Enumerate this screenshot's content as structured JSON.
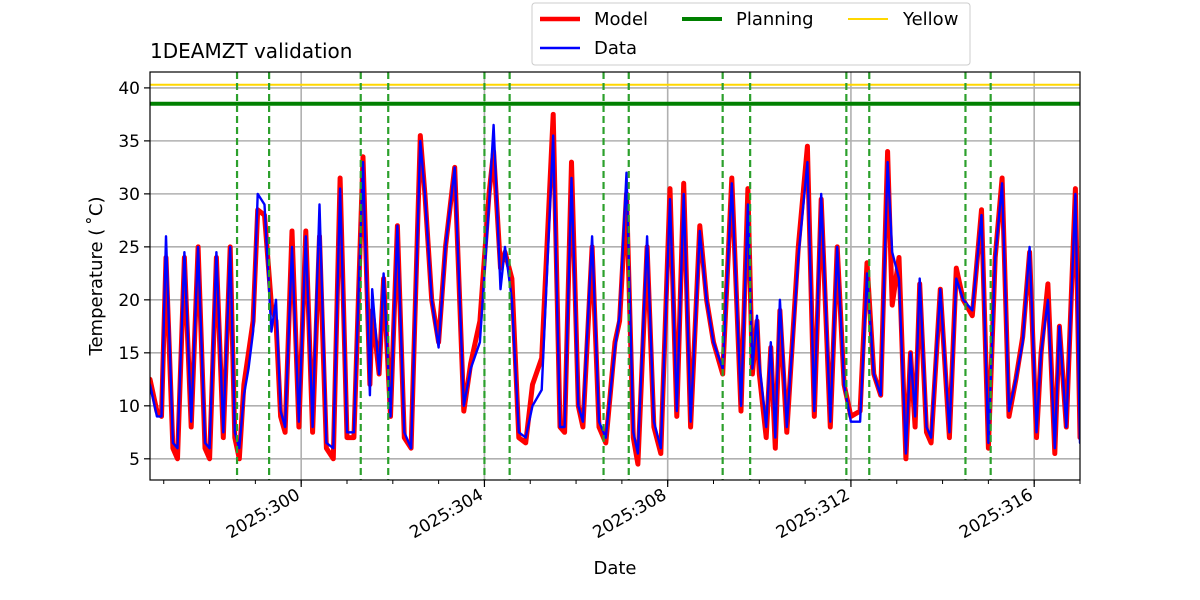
{
  "chart_data": {
    "type": "line",
    "title": "1DEAMZT validation",
    "xlabel": "Date",
    "ylabel": "Temperature ($^\\circ$C)",
    "ylabel_display": "Temperature ( ˚C)",
    "xlim": [
      296.7,
      317.0
    ],
    "ylim": [
      3.0,
      41.5
    ],
    "yticks": [
      5,
      10,
      15,
      20,
      25,
      30,
      35,
      40
    ],
    "xticks": [
      {
        "value": 300,
        "label": "2025:300"
      },
      {
        "value": 304,
        "label": "2025:304"
      },
      {
        "value": 308,
        "label": "2025:308"
      },
      {
        "value": 312,
        "label": "2025:312"
      },
      {
        "value": 316,
        "label": "2025:316"
      }
    ],
    "grid": true,
    "colors": {
      "model": "#ff0000",
      "data": "#0000ff",
      "planning": "#008000",
      "yellow": "#ffd700",
      "vline": "#2ca02c",
      "grid": "#b0b0b0"
    },
    "limits": [
      {
        "name": "Planning",
        "value": 38.5
      },
      {
        "name": "Yellow",
        "value": 40.3
      }
    ],
    "vertical_lines": [
      298.6,
      299.3,
      301.3,
      301.9,
      304.0,
      304.55,
      306.6,
      307.15,
      309.2,
      309.8,
      311.9,
      312.4,
      314.5,
      315.05
    ],
    "legend": {
      "location": "upper center outside",
      "entries": [
        {
          "label": "Model",
          "key": "model"
        },
        {
          "label": "Data",
          "key": "data"
        },
        {
          "label": "Planning",
          "key": "planning"
        },
        {
          "label": "Yellow",
          "key": "yellow"
        }
      ]
    },
    "series": [
      {
        "name": "Model",
        "color": "#ff0000",
        "points": [
          [
            296.7,
            12.5
          ],
          [
            296.85,
            9.5
          ],
          [
            296.95,
            9.0
          ],
          [
            297.05,
            24.0
          ],
          [
            297.2,
            6.0
          ],
          [
            297.3,
            5.0
          ],
          [
            297.45,
            24.0
          ],
          [
            297.6,
            8.0
          ],
          [
            297.75,
            25.0
          ],
          [
            297.9,
            6.0
          ],
          [
            298.0,
            5.0
          ],
          [
            298.15,
            24.0
          ],
          [
            298.3,
            7.0
          ],
          [
            298.45,
            25.0
          ],
          [
            298.55,
            7.0
          ],
          [
            298.65,
            5.0
          ],
          [
            298.75,
            12.0
          ],
          [
            298.85,
            15.0
          ],
          [
            298.95,
            18.0
          ],
          [
            299.05,
            28.5
          ],
          [
            299.2,
            28.0
          ],
          [
            299.35,
            19.5
          ],
          [
            299.45,
            18.0
          ],
          [
            299.55,
            9.0
          ],
          [
            299.65,
            7.5
          ],
          [
            299.8,
            26.5
          ],
          [
            299.95,
            8.0
          ],
          [
            300.1,
            26.5
          ],
          [
            300.25,
            7.5
          ],
          [
            300.4,
            26.0
          ],
          [
            300.55,
            6.0
          ],
          [
            300.7,
            5.0
          ],
          [
            300.85,
            31.5
          ],
          [
            301.0,
            7.0
          ],
          [
            301.15,
            7.0
          ],
          [
            301.35,
            33.5
          ],
          [
            301.5,
            12.0
          ],
          [
            301.55,
            19.0
          ],
          [
            301.7,
            13.0
          ],
          [
            301.8,
            22.0
          ],
          [
            301.95,
            9.0
          ],
          [
            302.1,
            27.0
          ],
          [
            302.25,
            7.0
          ],
          [
            302.4,
            6.0
          ],
          [
            302.6,
            35.5
          ],
          [
            302.7,
            30.0
          ],
          [
            302.85,
            20.0
          ],
          [
            303.0,
            16.0
          ],
          [
            303.15,
            25.0
          ],
          [
            303.35,
            32.5
          ],
          [
            303.55,
            9.5
          ],
          [
            303.7,
            14.0
          ],
          [
            303.9,
            18.0
          ],
          [
            304.1,
            30.0
          ],
          [
            304.2,
            34.0
          ],
          [
            304.35,
            23.0
          ],
          [
            304.45,
            24.5
          ],
          [
            304.6,
            22.0
          ],
          [
            304.75,
            7.0
          ],
          [
            304.9,
            6.5
          ],
          [
            305.05,
            12.0
          ],
          [
            305.25,
            14.5
          ],
          [
            305.5,
            37.5
          ],
          [
            305.65,
            8.0
          ],
          [
            305.75,
            7.5
          ],
          [
            305.9,
            33.0
          ],
          [
            306.05,
            10.0
          ],
          [
            306.15,
            8.0
          ],
          [
            306.35,
            25.0
          ],
          [
            306.5,
            8.0
          ],
          [
            306.65,
            6.5
          ],
          [
            306.85,
            16.0
          ],
          [
            306.95,
            18.0
          ],
          [
            307.1,
            30.0
          ],
          [
            307.25,
            7.0
          ],
          [
            307.35,
            4.5
          ],
          [
            307.55,
            25.0
          ],
          [
            307.7,
            8.0
          ],
          [
            307.85,
            5.5
          ],
          [
            308.05,
            30.5
          ],
          [
            308.2,
            9.0
          ],
          [
            308.35,
            31.0
          ],
          [
            308.5,
            8.0
          ],
          [
            308.7,
            27.0
          ],
          [
            308.85,
            20.0
          ],
          [
            309.0,
            16.0
          ],
          [
            309.2,
            13.0
          ],
          [
            309.4,
            31.5
          ],
          [
            309.6,
            9.5
          ],
          [
            309.75,
            30.5
          ],
          [
            309.85,
            13.0
          ],
          [
            309.95,
            18.0
          ],
          [
            310.0,
            13.0
          ],
          [
            310.15,
            7.0
          ],
          [
            310.25,
            15.5
          ],
          [
            310.35,
            6.0
          ],
          [
            310.45,
            19.0
          ],
          [
            310.6,
            7.5
          ],
          [
            310.85,
            25.0
          ],
          [
            311.05,
            34.5
          ],
          [
            311.2,
            9.0
          ],
          [
            311.35,
            29.5
          ],
          [
            311.55,
            8.0
          ],
          [
            311.7,
            25.0
          ],
          [
            311.85,
            12.0
          ],
          [
            312.0,
            9.0
          ],
          [
            312.2,
            9.5
          ],
          [
            312.35,
            23.5
          ],
          [
            312.5,
            13.0
          ],
          [
            312.65,
            11.0
          ],
          [
            312.8,
            34.0
          ],
          [
            312.9,
            19.5
          ],
          [
            313.05,
            24.0
          ],
          [
            313.2,
            5.0
          ],
          [
            313.3,
            15.0
          ],
          [
            313.4,
            8.0
          ],
          [
            313.5,
            21.5
          ],
          [
            313.65,
            7.5
          ],
          [
            313.75,
            6.5
          ],
          [
            313.95,
            21.0
          ],
          [
            314.15,
            7.0
          ],
          [
            314.3,
            23.0
          ],
          [
            314.45,
            20.0
          ],
          [
            314.65,
            18.5
          ],
          [
            314.85,
            28.5
          ],
          [
            315.0,
            6.0
          ],
          [
            315.15,
            24.0
          ],
          [
            315.3,
            31.5
          ],
          [
            315.45,
            9.0
          ],
          [
            315.6,
            12.5
          ],
          [
            315.75,
            16.5
          ],
          [
            315.9,
            24.5
          ],
          [
            316.05,
            7.0
          ],
          [
            316.15,
            15.0
          ],
          [
            316.3,
            21.5
          ],
          [
            316.45,
            5.5
          ],
          [
            316.55,
            17.5
          ],
          [
            316.7,
            8.0
          ],
          [
            316.9,
            30.5
          ],
          [
            317.0,
            7.0
          ]
        ]
      },
      {
        "name": "Data",
        "color": "#0000ff",
        "points": [
          [
            296.7,
            12.0
          ],
          [
            296.85,
            9.0
          ],
          [
            296.95,
            9.0
          ],
          [
            297.05,
            26.0
          ],
          [
            297.2,
            6.5
          ],
          [
            297.3,
            6.0
          ],
          [
            297.45,
            24.5
          ],
          [
            297.6,
            8.5
          ],
          [
            297.75,
            25.0
          ],
          [
            297.9,
            6.5
          ],
          [
            298.0,
            6.0
          ],
          [
            298.15,
            24.5
          ],
          [
            298.3,
            7.5
          ],
          [
            298.45,
            25.0
          ],
          [
            298.55,
            7.5
          ],
          [
            298.65,
            6.0
          ],
          [
            298.75,
            11.0
          ],
          [
            298.85,
            13.5
          ],
          [
            298.95,
            17.0
          ],
          [
            299.05,
            30.0
          ],
          [
            299.2,
            29.0
          ],
          [
            299.35,
            17.0
          ],
          [
            299.45,
            20.0
          ],
          [
            299.55,
            9.5
          ],
          [
            299.65,
            8.0
          ],
          [
            299.8,
            25.0
          ],
          [
            299.95,
            8.5
          ],
          [
            300.1,
            26.0
          ],
          [
            300.25,
            8.0
          ],
          [
            300.4,
            29.0
          ],
          [
            300.55,
            6.5
          ],
          [
            300.7,
            6.0
          ],
          [
            300.85,
            30.5
          ],
          [
            301.0,
            7.5
          ],
          [
            301.15,
            7.5
          ],
          [
            301.35,
            33.0
          ],
          [
            301.5,
            11.0
          ],
          [
            301.55,
            21.0
          ],
          [
            301.7,
            13.0
          ],
          [
            301.8,
            22.5
          ],
          [
            301.95,
            9.0
          ],
          [
            302.1,
            27.0
          ],
          [
            302.25,
            7.5
          ],
          [
            302.4,
            6.0
          ],
          [
            302.6,
            35.0
          ],
          [
            302.7,
            30.0
          ],
          [
            302.85,
            20.0
          ],
          [
            303.0,
            15.5
          ],
          [
            303.15,
            25.0
          ],
          [
            303.35,
            32.5
          ],
          [
            303.55,
            10.0
          ],
          [
            303.7,
            13.5
          ],
          [
            303.9,
            16.0
          ],
          [
            304.1,
            29.0
          ],
          [
            304.2,
            36.5
          ],
          [
            304.35,
            21.0
          ],
          [
            304.45,
            25.0
          ],
          [
            304.6,
            20.0
          ],
          [
            304.75,
            7.5
          ],
          [
            304.9,
            7.0
          ],
          [
            305.05,
            10.0
          ],
          [
            305.25,
            11.5
          ],
          [
            305.5,
            35.5
          ],
          [
            305.65,
            8.0
          ],
          [
            305.75,
            8.0
          ],
          [
            305.9,
            31.5
          ],
          [
            306.05,
            10.0
          ],
          [
            306.15,
            8.5
          ],
          [
            306.35,
            26.0
          ],
          [
            306.5,
            8.5
          ],
          [
            306.65,
            7.0
          ],
          [
            306.85,
            15.5
          ],
          [
            306.95,
            18.5
          ],
          [
            307.1,
            32.0
          ],
          [
            307.25,
            7.5
          ],
          [
            307.35,
            5.5
          ],
          [
            307.55,
            26.0
          ],
          [
            307.7,
            8.5
          ],
          [
            307.85,
            6.0
          ],
          [
            308.05,
            29.5
          ],
          [
            308.2,
            9.5
          ],
          [
            308.35,
            30.0
          ],
          [
            308.5,
            8.5
          ],
          [
            308.7,
            26.5
          ],
          [
            308.85,
            20.0
          ],
          [
            309.0,
            16.0
          ],
          [
            309.2,
            13.5
          ],
          [
            309.4,
            31.0
          ],
          [
            309.6,
            10.0
          ],
          [
            309.75,
            29.0
          ],
          [
            309.85,
            13.5
          ],
          [
            309.95,
            18.5
          ],
          [
            310.0,
            14.0
          ],
          [
            310.15,
            8.0
          ],
          [
            310.25,
            16.0
          ],
          [
            310.35,
            7.0
          ],
          [
            310.45,
            20.0
          ],
          [
            310.6,
            8.0
          ],
          [
            310.85,
            24.0
          ],
          [
            311.05,
            33.0
          ],
          [
            311.2,
            9.5
          ],
          [
            311.35,
            30.0
          ],
          [
            311.55,
            8.5
          ],
          [
            311.7,
            25.0
          ],
          [
            311.85,
            12.0
          ],
          [
            312.0,
            8.5
          ],
          [
            312.2,
            8.5
          ],
          [
            312.35,
            22.5
          ],
          [
            312.5,
            13.0
          ],
          [
            312.65,
            11.0
          ],
          [
            312.8,
            33.0
          ],
          [
            312.9,
            24.5
          ],
          [
            313.05,
            22.0
          ],
          [
            313.2,
            5.5
          ],
          [
            313.3,
            15.0
          ],
          [
            313.4,
            9.0
          ],
          [
            313.5,
            22.0
          ],
          [
            313.65,
            8.0
          ],
          [
            313.75,
            7.0
          ],
          [
            313.95,
            21.0
          ],
          [
            314.15,
            7.5
          ],
          [
            314.3,
            22.0
          ],
          [
            314.45,
            20.0
          ],
          [
            314.65,
            19.0
          ],
          [
            314.85,
            28.0
          ],
          [
            315.0,
            6.5
          ],
          [
            315.15,
            24.0
          ],
          [
            315.3,
            31.0
          ],
          [
            315.45,
            9.5
          ],
          [
            315.6,
            12.5
          ],
          [
            315.75,
            16.0
          ],
          [
            315.9,
            25.0
          ],
          [
            316.05,
            7.5
          ],
          [
            316.15,
            15.0
          ],
          [
            316.3,
            20.0
          ],
          [
            316.45,
            6.0
          ],
          [
            316.55,
            17.5
          ],
          [
            316.7,
            8.0
          ],
          [
            316.9,
            30.0
          ],
          [
            317.0,
            6.5
          ]
        ]
      }
    ]
  }
}
